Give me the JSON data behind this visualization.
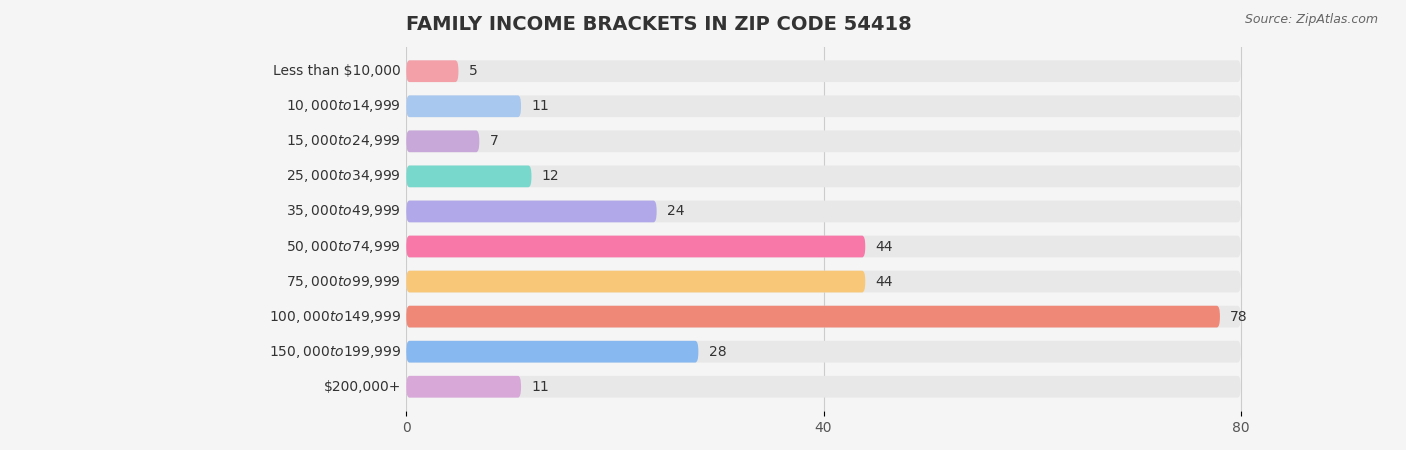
{
  "title": "FAMILY INCOME BRACKETS IN ZIP CODE 54418",
  "source": "Source: ZipAtlas.com",
  "categories": [
    "Less than $10,000",
    "$10,000 to $14,999",
    "$15,000 to $24,999",
    "$25,000 to $34,999",
    "$35,000 to $49,999",
    "$50,000 to $74,999",
    "$75,000 to $99,999",
    "$100,000 to $149,999",
    "$150,000 to $199,999",
    "$200,000+"
  ],
  "values": [
    5,
    11,
    7,
    12,
    24,
    44,
    44,
    78,
    28,
    11
  ],
  "bar_colors": [
    "#f4a0a8",
    "#a8c8f0",
    "#c8a8d8",
    "#78d8cc",
    "#b0a8e8",
    "#f878a8",
    "#f8c878",
    "#f08878",
    "#88b8f0",
    "#d8a8d8"
  ],
  "background_color": "#f5f5f5",
  "bar_bg_color": "#e8e8e8",
  "xlim": [
    0,
    80
  ],
  "xticks": [
    0,
    40,
    80
  ],
  "title_fontsize": 14,
  "label_fontsize": 10,
  "value_fontsize": 10
}
